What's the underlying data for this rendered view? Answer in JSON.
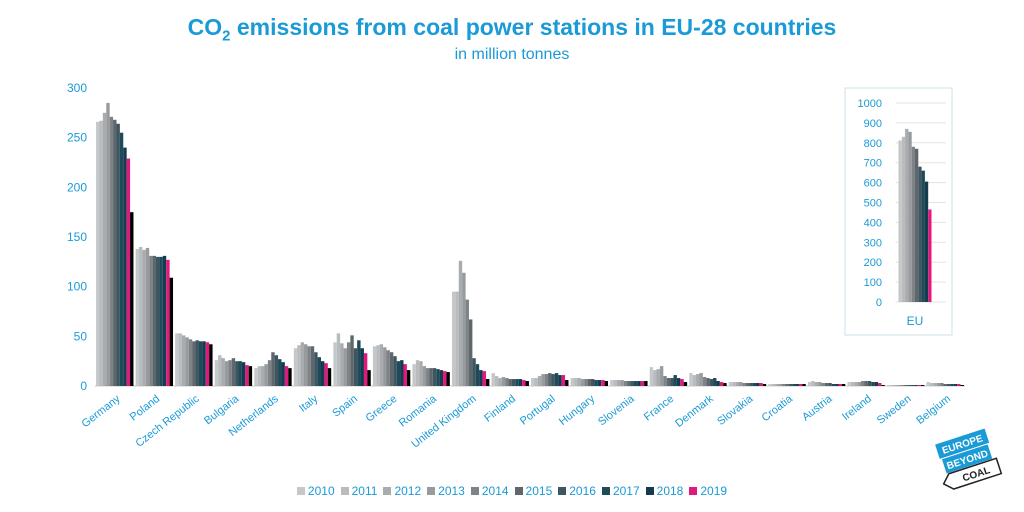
{
  "title_main": "CO",
  "title_sub": "2",
  "title_rest": " emissions from coal power stations in EU-28 countries",
  "subtitle": "in million tonnes",
  "colors": [
    "#c5c8ca",
    "#b8bcbf",
    "#a8acaf",
    "#979b9e",
    "#7d8386",
    "#5e676b",
    "#3d5660",
    "#1f4a5a",
    "#143c4e",
    "#e0197d"
  ],
  "logo": {
    "line1": "EUROPE",
    "line2": "BEYOND",
    "line3": "COAL"
  },
  "chart_data": [
    {
      "type": "bar",
      "title": "",
      "xlabel": "",
      "ylabel": "",
      "ylim": [
        0,
        300
      ],
      "yticks": [
        0,
        50,
        100,
        150,
        200,
        250,
        300
      ],
      "grid": false,
      "legend": "bottom",
      "categories": [
        "Germany",
        "Poland",
        "Czech Republic",
        "Bulgaria",
        "Netherlands",
        "Italy",
        "Spain",
        "Greece",
        "Romania",
        "United Kingdom",
        "Finland",
        "Portugal",
        "Hungary",
        "Slovenia",
        "France",
        "Denmark",
        "Slovakia",
        "Croatia",
        "Austria",
        "Ireland",
        "Sweden",
        "Belgium"
      ],
      "series": [
        {
          "name": "2010",
          "values": [
            266,
            138,
            53,
            26,
            18,
            38,
            44,
            40,
            22,
            95,
            13,
            8,
            8,
            6,
            19,
            13,
            4,
            2,
            4,
            4,
            1,
            4
          ]
        },
        {
          "name": "2011",
          "values": [
            267,
            140,
            53,
            31,
            20,
            41,
            53,
            41,
            26,
            95,
            10,
            8,
            8,
            6,
            16,
            11,
            4,
            2,
            5,
            4,
            1,
            3
          ]
        },
        {
          "name": "2012",
          "values": [
            275,
            137,
            51,
            28,
            20,
            44,
            43,
            42,
            25,
            126,
            8,
            10,
            8,
            6,
            17,
            12,
            4,
            2,
            4,
            4,
            1,
            3
          ]
        },
        {
          "name": "2013",
          "values": [
            285,
            139,
            49,
            25,
            22,
            42,
            38,
            39,
            20,
            114,
            9,
            12,
            7,
            6,
            20,
            13,
            4,
            2,
            4,
            4,
            1,
            3
          ]
        },
        {
          "name": "2014",
          "values": [
            271,
            131,
            47,
            26,
            26,
            40,
            44,
            36,
            18,
            87,
            8,
            12,
            7,
            5,
            10,
            9,
            3,
            2,
            3,
            5,
            1,
            3
          ]
        },
        {
          "name": "2015",
          "values": [
            268,
            131,
            45,
            28,
            34,
            40,
            51,
            34,
            18,
            67,
            7,
            13,
            7,
            5,
            8,
            8,
            3,
            2,
            3,
            5,
            1,
            2
          ]
        },
        {
          "name": "2016",
          "values": [
            264,
            130,
            46,
            25,
            31,
            34,
            38,
            30,
            18,
            28,
            7,
            12,
            7,
            5,
            8,
            7,
            3,
            2,
            3,
            5,
            1,
            2
          ]
        },
        {
          "name": "2017",
          "values": [
            255,
            130,
            45,
            25,
            27,
            29,
            46,
            25,
            17,
            22,
            7,
            13,
            6,
            5,
            11,
            8,
            3,
            2,
            2,
            4,
            1,
            2
          ]
        },
        {
          "name": "2018",
          "values": [
            240,
            131,
            45,
            24,
            24,
            25,
            38,
            26,
            16,
            16,
            7,
            11,
            6,
            5,
            8,
            5,
            3,
            2,
            2,
            4,
            1,
            2
          ]
        },
        {
          "name": "2019",
          "values": [
            229,
            127,
            44,
            21,
            20,
            23,
            33,
            22,
            15,
            15,
            6,
            11,
            6,
            5,
            7,
            4,
            3,
            2,
            2,
            3,
            1,
            2
          ]
        },
        {
          "name": "",
          "values": [
            175,
            109,
            42,
            20,
            18,
            18,
            16,
            16,
            14,
            7,
            5,
            6,
            5,
            5,
            4,
            3,
            2,
            2,
            2,
            1,
            1,
            1
          ]
        }
      ]
    },
    {
      "type": "bar",
      "title": "",
      "ylim": [
        0,
        1000
      ],
      "yticks": [
        0,
        100,
        200,
        300,
        400,
        500,
        600,
        700,
        800,
        900,
        1000
      ],
      "grid": true,
      "categories": [
        "EU"
      ],
      "series": [
        {
          "name": "2010",
          "values": [
            812
          ]
        },
        {
          "name": "2011",
          "values": [
            830
          ]
        },
        {
          "name": "2012",
          "values": [
            870
          ]
        },
        {
          "name": "2013",
          "values": [
            855
          ]
        },
        {
          "name": "2014",
          "values": [
            780
          ]
        },
        {
          "name": "2015",
          "values": [
            770
          ]
        },
        {
          "name": "2016",
          "values": [
            680
          ]
        },
        {
          "name": "2017",
          "values": [
            660
          ]
        },
        {
          "name": "2018",
          "values": [
            605
          ]
        },
        {
          "name": "2019",
          "values": [
            465
          ]
        }
      ]
    }
  ]
}
